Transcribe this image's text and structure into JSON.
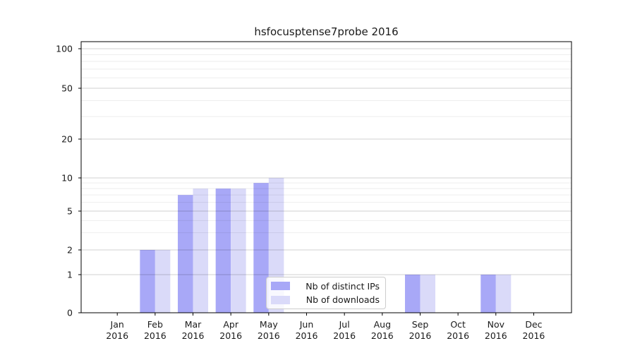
{
  "title": "hsfocusptense7probe 2016",
  "chart_data": {
    "type": "bar",
    "title": "hsfocusptense7probe 2016",
    "categories": [
      "Jan",
      "Feb",
      "Mar",
      "Apr",
      "May",
      "Jun",
      "Jul",
      "Aug",
      "Sep",
      "Oct",
      "Nov",
      "Dec"
    ],
    "x_year_label": "2016",
    "series": [
      {
        "name": "Nb of distinct IPs",
        "color": "#a8a8f7",
        "values": [
          0,
          2,
          7,
          8,
          9,
          0,
          0,
          0,
          1,
          0,
          1,
          0
        ]
      },
      {
        "name": "Nb of downloads",
        "color": "#dadaf9",
        "values": [
          0,
          2,
          8,
          8,
          10,
          0,
          0,
          0,
          1,
          0,
          1,
          0
        ]
      }
    ],
    "xlabel": "",
    "ylabel": "",
    "yscale": "symlog",
    "ylim": [
      0,
      100
    ],
    "y_ticks": [
      0,
      1,
      2,
      5,
      10,
      20,
      50,
      100
    ],
    "y_minor_ticks": [
      3,
      4,
      6,
      7,
      8,
      9,
      30,
      40,
      60,
      70,
      80,
      90
    ],
    "grid": true,
    "legend_position": "lower center"
  },
  "colors": {
    "axis_frame": "#000000",
    "major_grid": "rgba(0,0,0,0.18)",
    "minor_grid": "rgba(0,0,0,0.07)",
    "text": "#1a1a1a",
    "legend_border": "#cccccc",
    "legend_background": "rgba(255,255,255,0.8)"
  }
}
